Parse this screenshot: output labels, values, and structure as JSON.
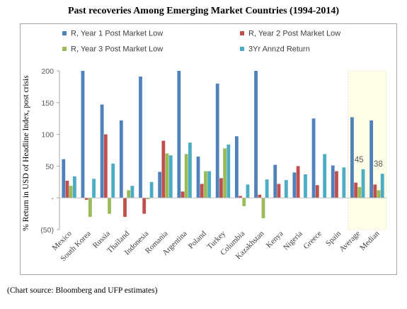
{
  "chart_data": {
    "type": "bar",
    "title": "Past recoveries Among Emerging Market Countries (1994-2014)",
    "ylabel": "% Return in USD of Headline  Index, post crisis",
    "xlabel": "",
    "ylim": [
      -50,
      200
    ],
    "yticks": [
      {
        "value": 200,
        "label": "200"
      },
      {
        "value": 150,
        "label": "150"
      },
      {
        "value": 100,
        "label": "100"
      },
      {
        "value": 50,
        "label": "50"
      },
      {
        "value": 0,
        "label": "-"
      },
      {
        "value": -50,
        "label": "(50)"
      }
    ],
    "legend_position": "top",
    "grid": false,
    "categories": [
      "Mexico",
      "South Korea",
      "Russia",
      "Thailand",
      "Indonesia",
      "Romania",
      "Argentina",
      "Poland",
      "Turkey",
      "Columbia",
      "Kazakhstan",
      "Kenya",
      "Nigeria",
      "Greece",
      "Spain",
      "Average",
      "Median"
    ],
    "highlighted_categories": [
      "Average",
      "Median"
    ],
    "highlight_color": "#fdfde8",
    "series": [
      {
        "name": "R, Year 1 Post Market Low",
        "color": "#4f81bd",
        "values": [
          61,
          200,
          147,
          122,
          191,
          41,
          200,
          65,
          180,
          97,
          200,
          52,
          40,
          125,
          51,
          127,
          122
        ]
      },
      {
        "name": "R, Year 2 Post Market Low",
        "color": "#c0504d",
        "values": [
          27,
          -3,
          100,
          -30,
          -25,
          90,
          10,
          22,
          31,
          3,
          5,
          22,
          50,
          20,
          42,
          24,
          21
        ]
      },
      {
        "name": "R, Year 3 Post Market Low",
        "color": "#9bbb59",
        "values": [
          19,
          -30,
          -25,
          12,
          -2,
          70,
          69,
          42,
          78,
          -13,
          -32,
          0,
          0,
          0,
          0,
          17,
          12
        ]
      },
      {
        "name": "3Yr Annzd Return",
        "color": "#4bacc6",
        "values": [
          34,
          30,
          54,
          19,
          25,
          67,
          87,
          42,
          84,
          21,
          29,
          28,
          37,
          69,
          48,
          45,
          38
        ]
      }
    ],
    "annotations": [
      {
        "category": "Average",
        "text": "45"
      },
      {
        "category": "Median",
        "text": "38"
      }
    ]
  },
  "source_note": "(Chart source: Bloomberg and UFP estimates)"
}
